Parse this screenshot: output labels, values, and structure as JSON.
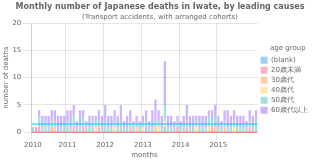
{
  "chart_data": {
    "type": "bar",
    "stacked": true,
    "title": "Monthly number of Japanese deaths in Iwate, by leading causes",
    "subtitle": "(Transport accidents, with arranged cohorts)",
    "xlabel": "months",
    "ylabel": "number of deaths",
    "categories": [
      "2010",
      null,
      null,
      null,
      null,
      null,
      null,
      null,
      null,
      null,
      null,
      "2011",
      null,
      null,
      null,
      null,
      null,
      null,
      null,
      null,
      null,
      null,
      null,
      "2012",
      null,
      null,
      null,
      null,
      null,
      null,
      null,
      null,
      null,
      null,
      null,
      "2013",
      null,
      null,
      null,
      null,
      null,
      null,
      null,
      null,
      null,
      null,
      null,
      "2014",
      null,
      null,
      null,
      null,
      null,
      null,
      null,
      null,
      null,
      null,
      null,
      "2015",
      null,
      null,
      null,
      null,
      null,
      null,
      null,
      null,
      null,
      null,
      null,
      null
    ],
    "series": [
      {
        "name": "(blank)",
        "values": [
          0,
          0,
          0,
          0,
          0,
          0,
          0,
          0,
          0,
          0,
          0,
          0,
          0,
          0,
          0,
          0,
          0,
          0,
          0,
          0,
          0,
          0,
          0,
          0,
          0,
          0,
          0,
          0,
          0,
          0,
          0,
          0,
          0,
          0,
          0,
          0,
          1,
          0,
          0,
          0,
          0,
          0,
          1,
          0,
          0,
          0,
          0,
          0,
          0,
          0,
          0,
          0,
          0,
          0,
          0,
          0,
          0,
          0,
          0,
          0,
          0,
          0,
          0,
          0,
          0,
          0,
          0,
          0,
          0,
          0,
          0,
          0
        ]
      },
      {
        "name": "20歳未満",
        "values": [
          0,
          0,
          1,
          0,
          0,
          0,
          1,
          0,
          0,
          0,
          0,
          0,
          0,
          1,
          0,
          0,
          1,
          0,
          0,
          0,
          0,
          1,
          0,
          0,
          0,
          0,
          0,
          0,
          0,
          0,
          0,
          1,
          0,
          0,
          0,
          0,
          0,
          0,
          0,
          0,
          0,
          0,
          0,
          0,
          0,
          0,
          1,
          0,
          0,
          1,
          0,
          0,
          0,
          0,
          0,
          0,
          0,
          1,
          0,
          0,
          0,
          0,
          0,
          0,
          0,
          0,
          0,
          0,
          0,
          1,
          0,
          0
        ]
      },
      {
        "name": "30歳代",
        "values": [
          0,
          0,
          0,
          0,
          0,
          0,
          0,
          1,
          0,
          0,
          0,
          0,
          0,
          0,
          0,
          0,
          0,
          0,
          0,
          0,
          0,
          0,
          0,
          0,
          0,
          0,
          0,
          0,
          0,
          0,
          0,
          0,
          0,
          1,
          0,
          0,
          0,
          0,
          0,
          1,
          0,
          0,
          0,
          0,
          0,
          0,
          0,
          0,
          0,
          0,
          0,
          0,
          0,
          0,
          0,
          0,
          0,
          0,
          1,
          0,
          0,
          1,
          0,
          0,
          0,
          0,
          0,
          0,
          0,
          0,
          0,
          0
        ]
      },
      {
        "name": "40歳代",
        "values": [
          0,
          0,
          0,
          0,
          0,
          0,
          0,
          0,
          0,
          0,
          0,
          0,
          0,
          0,
          0,
          0,
          0,
          0,
          0,
          0,
          1,
          0,
          0,
          0,
          0,
          0,
          1,
          0,
          0,
          0,
          0,
          0,
          0,
          0,
          0,
          1,
          0,
          0,
          0,
          0,
          1,
          0,
          1,
          0,
          0,
          0,
          0,
          0,
          0,
          0,
          0,
          0,
          1,
          0,
          0,
          0,
          1,
          0,
          0,
          0,
          0,
          0,
          0,
          0,
          1,
          0,
          0,
          0,
          0,
          0,
          0,
          0
        ]
      },
      {
        "name": "50歳代",
        "values": [
          1,
          0,
          2,
          1,
          2,
          1,
          1,
          1,
          0,
          1,
          1,
          2,
          1,
          2,
          1,
          1,
          2,
          1,
          1,
          2,
          1,
          1,
          1,
          2,
          1,
          1,
          1,
          1,
          2,
          1,
          1,
          1,
          1,
          1,
          1,
          1,
          1,
          1,
          1,
          1,
          1,
          1,
          3,
          1,
          1,
          1,
          1,
          1,
          1,
          1,
          1,
          1,
          1,
          1,
          1,
          1,
          2,
          1,
          2,
          1,
          1,
          1,
          1,
          1,
          1,
          1,
          1,
          1,
          1,
          1,
          1,
          2
        ]
      },
      {
        "name": "60歳代以上",
        "values": [
          0,
          1,
          1,
          2,
          1,
          2,
          2,
          2,
          3,
          2,
          2,
          2,
          3,
          2,
          1,
          3,
          1,
          1,
          2,
          1,
          1,
          2,
          2,
          3,
          2,
          2,
          2,
          2,
          3,
          1,
          2,
          2,
          1,
          1,
          1,
          1,
          2,
          1,
          3,
          4,
          2,
          2,
          8,
          2,
          2,
          1,
          1,
          1,
          2,
          3,
          2,
          2,
          1,
          2,
          2,
          2,
          1,
          2,
          2,
          2,
          1,
          2,
          3,
          2,
          2,
          2,
          2,
          2,
          1,
          2,
          2,
          2
        ]
      }
    ],
    "ylim": [
      0,
      20
    ],
    "yticks": [
      0,
      5,
      10,
      15,
      20
    ],
    "grid": true,
    "legend": "right",
    "legend_title": "age group",
    "reference_lines": [
      {
        "y": 1.5,
        "color": "#00ccff"
      },
      {
        "y": 0,
        "color": "#ff6666"
      }
    ]
  }
}
